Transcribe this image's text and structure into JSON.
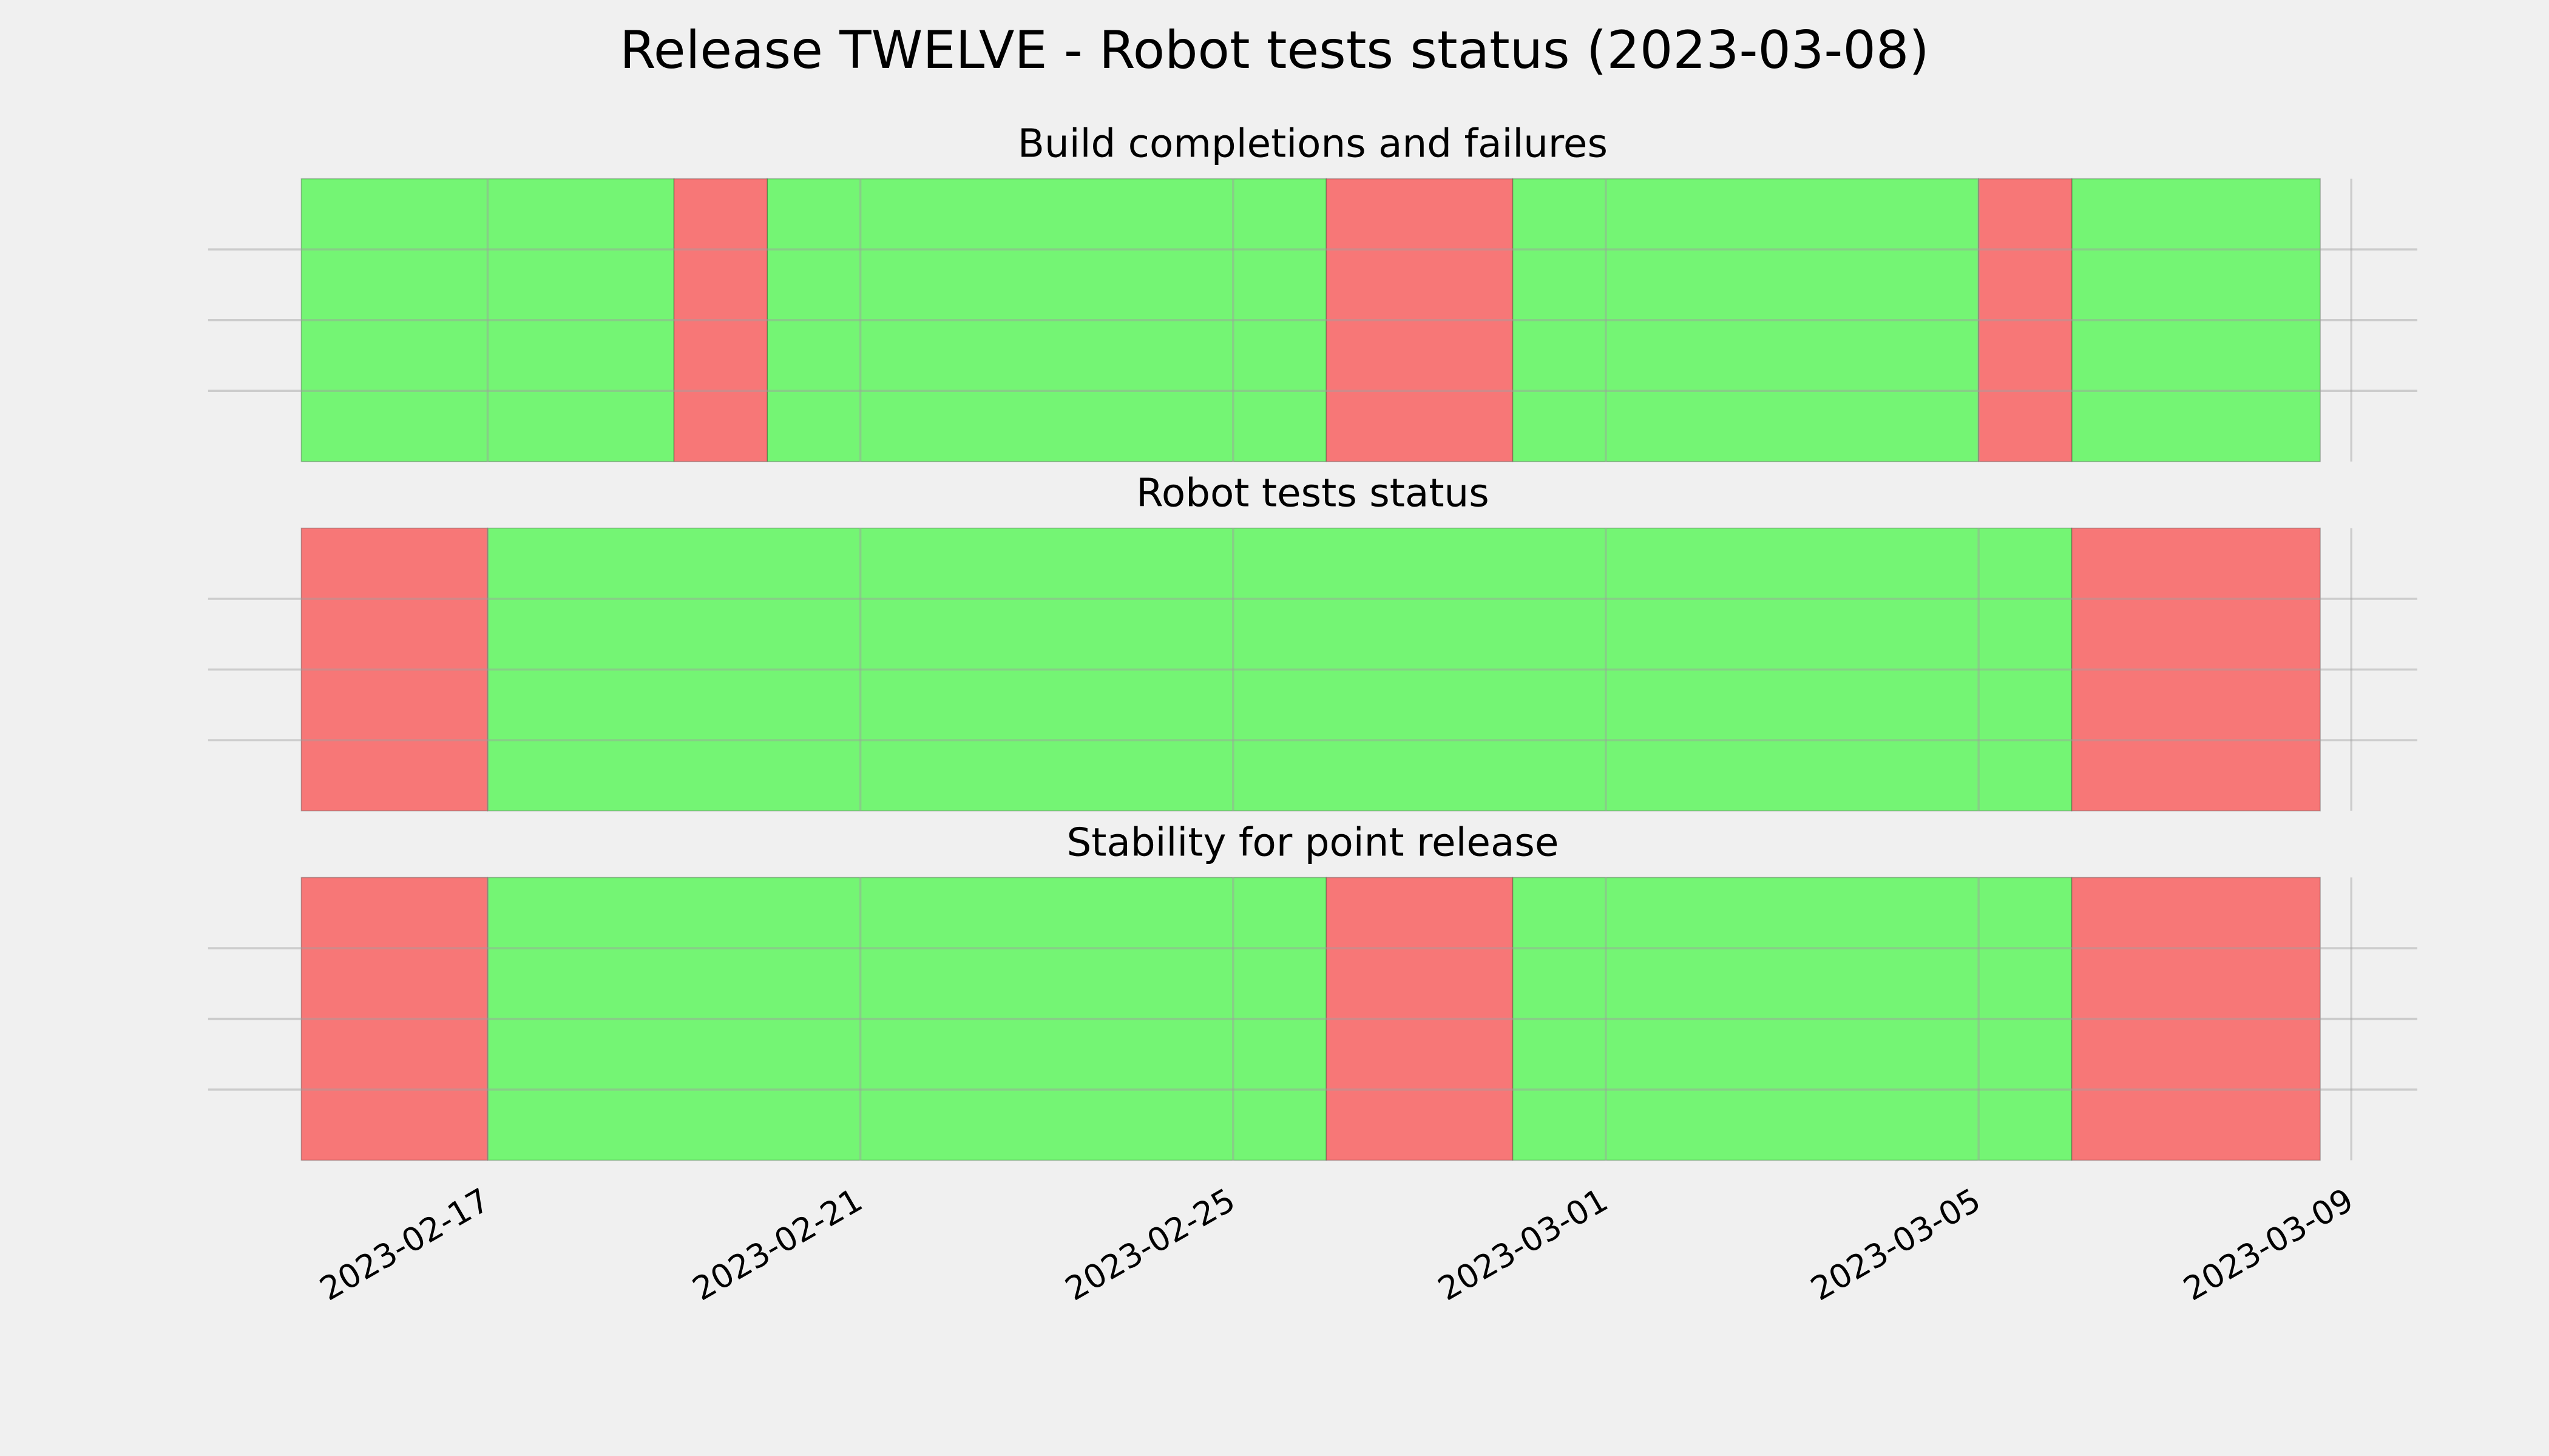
{
  "title": "Release TWELVE - Robot tests status (2023-03-08)",
  "chart_data": [
    {
      "type": "span",
      "title": "Build completions and failures",
      "xlim": [
        "2023-02-14",
        "2023-03-09T17:00"
      ],
      "ylim": [
        0,
        1
      ],
      "yticks": [
        0.25,
        0.5,
        0.75
      ],
      "xticks": [
        "2023-02-17",
        "2023-02-21",
        "2023-02-25",
        "2023-03-01",
        "2023-03-05",
        "2023-03-09"
      ],
      "grid": true,
      "series": [
        {
          "color": "#74f574",
          "starts": [
            "2023-02-15",
            "2023-02-20",
            "2023-02-28",
            "2023-03-06"
          ],
          "ends": [
            "2023-02-19",
            "2023-02-26",
            "2023-03-05",
            "2023-03-08T16:00"
          ]
        },
        {
          "color": "#f77777",
          "starts": [
            "2023-02-19",
            "2023-02-26",
            "2023-03-05"
          ],
          "ends": [
            "2023-02-20",
            "2023-02-28",
            "2023-03-06"
          ]
        }
      ]
    },
    {
      "type": "span",
      "title": "Robot tests status",
      "xlim": [
        "2023-02-14",
        "2023-03-09T17:00"
      ],
      "ylim": [
        0,
        1
      ],
      "yticks": [
        0.25,
        0.5,
        0.75
      ],
      "xticks": [
        "2023-02-17",
        "2023-02-21",
        "2023-02-25",
        "2023-03-01",
        "2023-03-05",
        "2023-03-09"
      ],
      "grid": true,
      "series": [
        {
          "color": "#74f574",
          "starts": [
            "2023-02-17"
          ],
          "ends": [
            "2023-03-06"
          ]
        },
        {
          "color": "#f77777",
          "starts": [
            "2023-02-15",
            "2023-03-06"
          ],
          "ends": [
            "2023-02-17",
            "2023-03-08T16:00"
          ]
        }
      ]
    },
    {
      "type": "span",
      "title": "Stability for point release",
      "xlim": [
        "2023-02-14",
        "2023-03-09T17:00"
      ],
      "ylim": [
        0,
        1
      ],
      "yticks": [
        0.25,
        0.5,
        0.75
      ],
      "xticks": [
        "2023-02-17",
        "2023-02-21",
        "2023-02-25",
        "2023-03-01",
        "2023-03-05",
        "2023-03-09"
      ],
      "grid": true,
      "series": [
        {
          "color": "#74f574",
          "starts": [
            "2023-02-17",
            "2023-02-28"
          ],
          "ends": [
            "2023-02-26",
            "2023-03-06"
          ]
        },
        {
          "color": "#f77777",
          "starts": [
            "2023-02-15",
            "2023-02-26",
            "2023-03-06"
          ],
          "ends": [
            "2023-02-17",
            "2023-02-28",
            "2023-03-08T16:00"
          ]
        }
      ]
    }
  ]
}
